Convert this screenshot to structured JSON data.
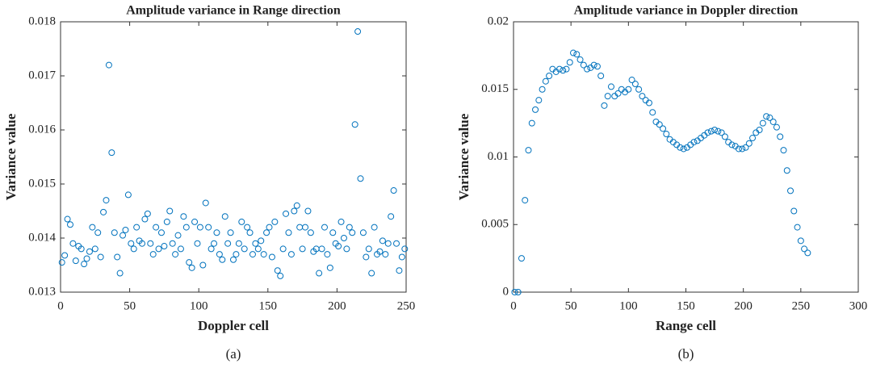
{
  "chart_data": [
    {
      "type": "scatter",
      "title": "Amplitude variance in Range direction",
      "x_label": "Doppler cell",
      "y_label": "Variance value",
      "caption": "(a)",
      "color": "#0072bd",
      "xlim": [
        0,
        250
      ],
      "xticks": [
        0,
        50,
        100,
        150,
        200,
        250
      ],
      "ylim": [
        0.013,
        0.018
      ],
      "yticks": [
        0.013,
        0.014,
        0.015,
        0.016,
        0.017,
        0.018
      ],
      "x": [
        1,
        3,
        5,
        7,
        9,
        11,
        13,
        15,
        17,
        19,
        21,
        23,
        25,
        27,
        29,
        31,
        33,
        35,
        37,
        39,
        41,
        43,
        45,
        47,
        49,
        51,
        53,
        55,
        57,
        59,
        61,
        63,
        65,
        67,
        69,
        71,
        73,
        75,
        77,
        79,
        81,
        83,
        85,
        87,
        89,
        91,
        93,
        95,
        97,
        99,
        101,
        103,
        105,
        107,
        109,
        111,
        113,
        115,
        117,
        119,
        121,
        123,
        125,
        127,
        129,
        131,
        133,
        135,
        137,
        139,
        141,
        143,
        145,
        147,
        149,
        151,
        153,
        155,
        157,
        159,
        161,
        163,
        165,
        167,
        169,
        171,
        173,
        175,
        177,
        179,
        181,
        183,
        185,
        187,
        189,
        191,
        193,
        195,
        197,
        199,
        201,
        203,
        205,
        207,
        209,
        211,
        213,
        215,
        217,
        219,
        221,
        223,
        225,
        227,
        229,
        231,
        233,
        235,
        237,
        239,
        241,
        243,
        245,
        247,
        249
      ],
      "values": [
        0.01355,
        0.01368,
        0.01435,
        0.01425,
        0.0139,
        0.01358,
        0.01385,
        0.0138,
        0.01352,
        0.01362,
        0.01375,
        0.0142,
        0.0138,
        0.0141,
        0.01365,
        0.01448,
        0.0147,
        0.0172,
        0.01558,
        0.0141,
        0.01365,
        0.01335,
        0.01405,
        0.01415,
        0.0148,
        0.0139,
        0.0138,
        0.0142,
        0.01395,
        0.0139,
        0.01435,
        0.01445,
        0.0139,
        0.0137,
        0.0142,
        0.0138,
        0.0141,
        0.01385,
        0.0143,
        0.0145,
        0.0139,
        0.0137,
        0.01405,
        0.0138,
        0.0144,
        0.0142,
        0.01355,
        0.01345,
        0.0143,
        0.0139,
        0.0142,
        0.0135,
        0.01465,
        0.0142,
        0.0138,
        0.0139,
        0.0141,
        0.0137,
        0.0136,
        0.0144,
        0.0139,
        0.0141,
        0.0136,
        0.0137,
        0.0139,
        0.0143,
        0.0138,
        0.0142,
        0.0141,
        0.0137,
        0.0139,
        0.0138,
        0.01395,
        0.0137,
        0.0141,
        0.0142,
        0.01365,
        0.0143,
        0.0134,
        0.0133,
        0.0138,
        0.01445,
        0.0141,
        0.0137,
        0.0145,
        0.0146,
        0.0142,
        0.0138,
        0.0142,
        0.0145,
        0.0141,
        0.01375,
        0.0138,
        0.01335,
        0.0138,
        0.0142,
        0.0137,
        0.01345,
        0.0141,
        0.0139,
        0.01385,
        0.0143,
        0.014,
        0.0138,
        0.0142,
        0.0141,
        0.0161,
        0.01782,
        0.0151,
        0.0141,
        0.01365,
        0.0138,
        0.01335,
        0.0142,
        0.0137,
        0.01375,
        0.01395,
        0.0137,
        0.0139,
        0.0144,
        0.01488,
        0.0139,
        0.0134,
        0.01365,
        0.0138
      ]
    },
    {
      "type": "scatter",
      "title": "Amplitude variance in Doppler direction",
      "x_label": "Range cell",
      "y_label": "Variance value",
      "caption": "(b)",
      "color": "#0072bd",
      "xlim": [
        0,
        300
      ],
      "xticks": [
        0,
        50,
        100,
        150,
        200,
        250,
        300
      ],
      "ylim": [
        0,
        0.02
      ],
      "yticks": [
        0,
        0.005,
        0.01,
        0.015,
        0.02
      ],
      "x": [
        1,
        4,
        7,
        10,
        13,
        16,
        19,
        22,
        25,
        28,
        31,
        34,
        37,
        40,
        43,
        46,
        49,
        52,
        55,
        58,
        61,
        64,
        67,
        70,
        73,
        76,
        79,
        82,
        85,
        88,
        91,
        94,
        97,
        100,
        103,
        106,
        109,
        112,
        115,
        118,
        121,
        124,
        127,
        130,
        133,
        136,
        139,
        142,
        145,
        148,
        151,
        154,
        157,
        160,
        163,
        166,
        169,
        172,
        175,
        178,
        181,
        184,
        187,
        190,
        193,
        196,
        199,
        202,
        205,
        208,
        211,
        214,
        217,
        220,
        223,
        226,
        229,
        232,
        235,
        238,
        241,
        244,
        247,
        250,
        253,
        256
      ],
      "values": [
        0,
        0,
        0.0025,
        0.0068,
        0.0105,
        0.0125,
        0.0135,
        0.0142,
        0.015,
        0.0156,
        0.016,
        0.0165,
        0.0163,
        0.0165,
        0.0164,
        0.0165,
        0.017,
        0.0177,
        0.0176,
        0.0172,
        0.0168,
        0.0165,
        0.0166,
        0.0168,
        0.0167,
        0.016,
        0.0138,
        0.0145,
        0.0152,
        0.0145,
        0.0147,
        0.015,
        0.0148,
        0.015,
        0.0157,
        0.0154,
        0.015,
        0.0145,
        0.0142,
        0.014,
        0.0133,
        0.0126,
        0.0124,
        0.0121,
        0.0117,
        0.0113,
        0.0111,
        0.0109,
        0.0107,
        0.0106,
        0.0107,
        0.0109,
        0.0111,
        0.0112,
        0.0114,
        0.0116,
        0.0118,
        0.0119,
        0.012,
        0.0119,
        0.0118,
        0.0115,
        0.0111,
        0.0109,
        0.0108,
        0.0106,
        0.0106,
        0.0107,
        0.011,
        0.0114,
        0.0118,
        0.012,
        0.0125,
        0.013,
        0.0129,
        0.0126,
        0.0122,
        0.0115,
        0.0105,
        0.009,
        0.0075,
        0.006,
        0.0048,
        0.0038,
        0.0032,
        0.0029
      ]
    }
  ]
}
